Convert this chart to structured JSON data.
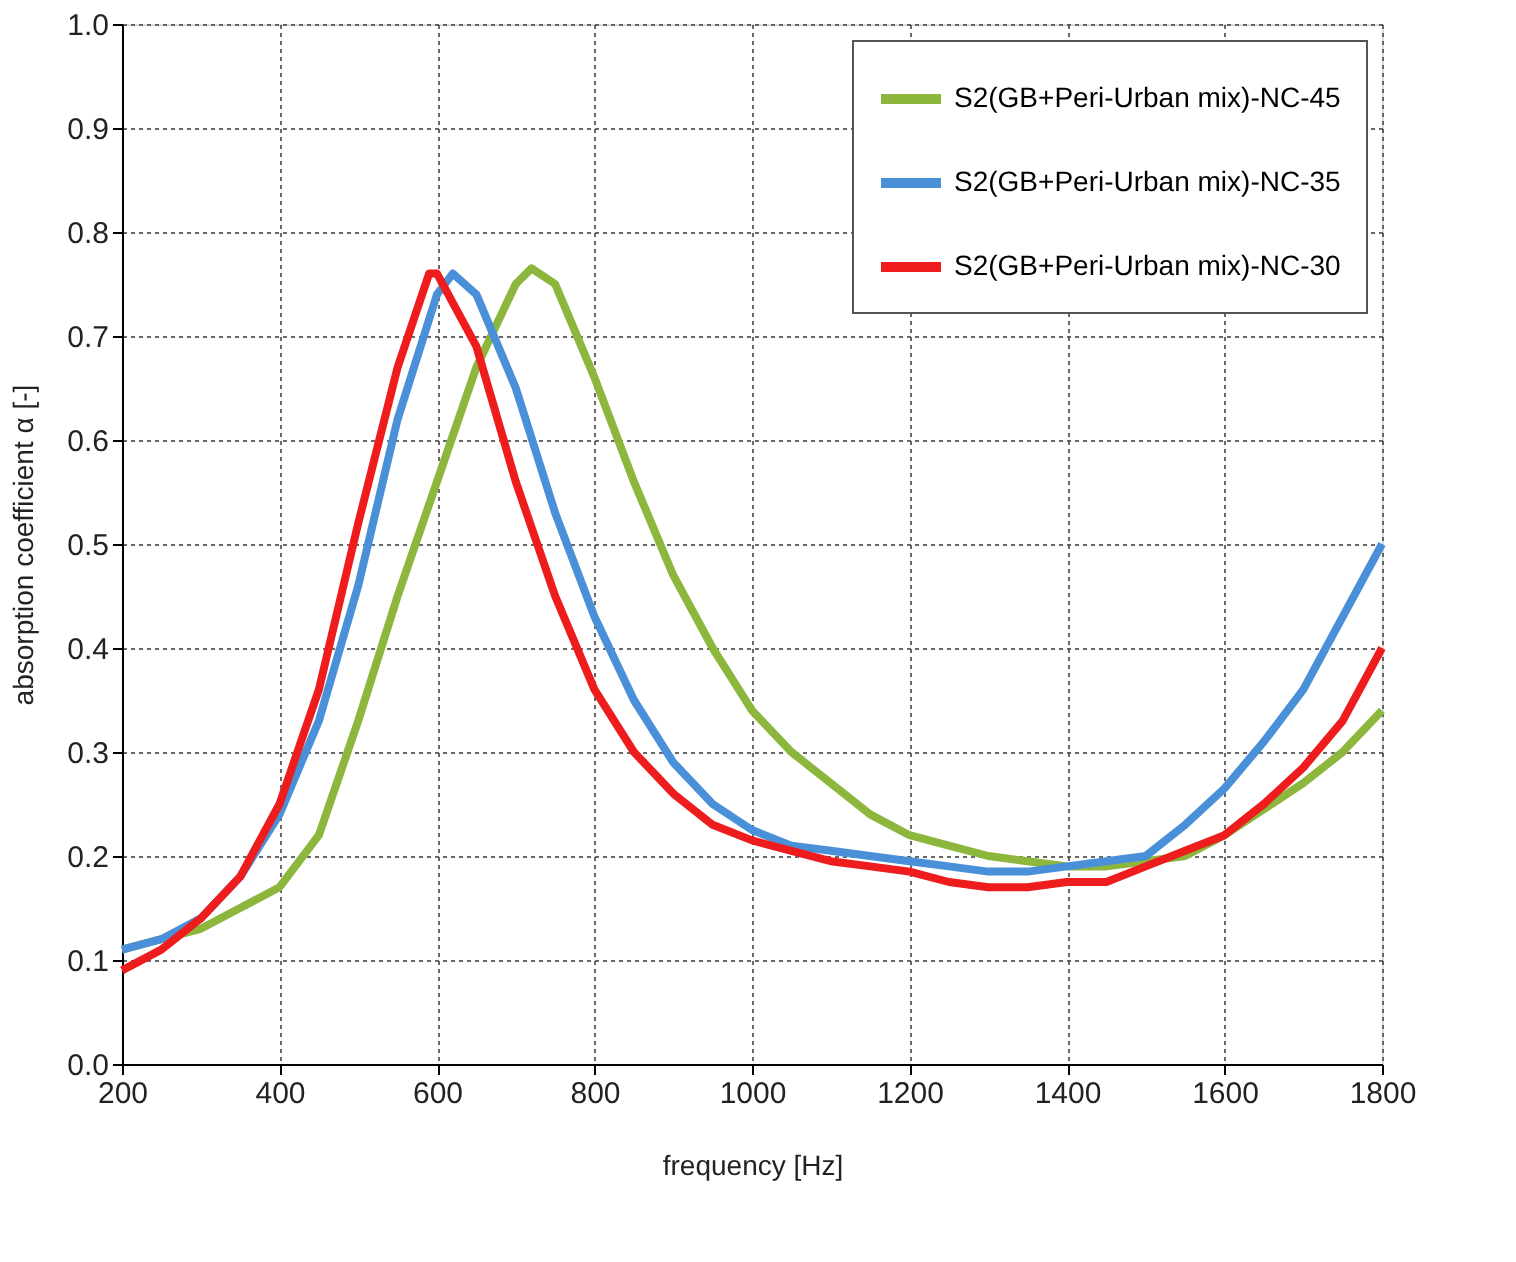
{
  "chart_data": {
    "type": "line",
    "xlabel": "frequency [Hz]",
    "ylabel": "absorption  coefficient α [-]",
    "xlim": [
      200,
      1800
    ],
    "xticks": [
      200,
      400,
      600,
      800,
      1000,
      1200,
      1400,
      1600,
      1800
    ],
    "ylim": [
      0,
      1
    ],
    "yticks": [
      {
        "value": 0,
        "label": "0.0"
      },
      0.1,
      0.2,
      0.3,
      0.4,
      0.5,
      0.6,
      0.7,
      0.8,
      0.9,
      {
        "value": 1,
        "label": "1.0"
      }
    ],
    "grid": true,
    "legend": "top right",
    "line_style": "solid",
    "marker": "none",
    "series": [
      {
        "name": "S2(GB+Peri-Urban mix)-NC-45",
        "color": "#8cb63c",
        "x": [
          200,
          250,
          300,
          350,
          400,
          450,
          500,
          550,
          600,
          650,
          700,
          720,
          750,
          800,
          850,
          900,
          950,
          1000,
          1050,
          1100,
          1150,
          1200,
          1250,
          1300,
          1350,
          1400,
          1450,
          1500,
          1550,
          1600,
          1650,
          1700,
          1750,
          1800
        ],
        "values": [
          0.11,
          0.12,
          0.13,
          0.15,
          0.17,
          0.22,
          0.33,
          0.45,
          0.56,
          0.67,
          0.75,
          0.765,
          0.75,
          0.66,
          0.56,
          0.47,
          0.4,
          0.34,
          0.3,
          0.27,
          0.24,
          0.22,
          0.21,
          0.2,
          0.195,
          0.19,
          0.19,
          0.195,
          0.2,
          0.22,
          0.245,
          0.27,
          0.3,
          0.34
        ]
      },
      {
        "name": "S2(GB+Peri-Urban mix)-NC-35",
        "color": "#4a90d9",
        "x": [
          200,
          250,
          300,
          350,
          400,
          450,
          500,
          550,
          600,
          620,
          650,
          700,
          750,
          800,
          850,
          900,
          950,
          1000,
          1050,
          1100,
          1150,
          1200,
          1250,
          1300,
          1350,
          1400,
          1450,
          1500,
          1550,
          1600,
          1650,
          1700,
          1750,
          1800
        ],
        "values": [
          0.11,
          0.12,
          0.14,
          0.18,
          0.24,
          0.33,
          0.46,
          0.62,
          0.74,
          0.76,
          0.74,
          0.65,
          0.53,
          0.43,
          0.35,
          0.29,
          0.25,
          0.225,
          0.21,
          0.205,
          0.2,
          0.195,
          0.19,
          0.185,
          0.185,
          0.19,
          0.195,
          0.2,
          0.23,
          0.265,
          0.31,
          0.36,
          0.43,
          0.5
        ]
      },
      {
        "name": "S2(GB+Peri-Urban mix)-NC-30",
        "color": "#ee1c1c",
        "x": [
          200,
          250,
          300,
          350,
          400,
          450,
          500,
          550,
          590,
          600,
          650,
          700,
          750,
          800,
          850,
          900,
          950,
          1000,
          1050,
          1100,
          1150,
          1200,
          1250,
          1300,
          1350,
          1400,
          1450,
          1500,
          1550,
          1600,
          1650,
          1700,
          1750,
          1800
        ],
        "values": [
          0.09,
          0.11,
          0.14,
          0.18,
          0.25,
          0.36,
          0.52,
          0.67,
          0.76,
          0.76,
          0.69,
          0.56,
          0.45,
          0.36,
          0.3,
          0.26,
          0.23,
          0.215,
          0.205,
          0.195,
          0.19,
          0.185,
          0.175,
          0.17,
          0.17,
          0.175,
          0.175,
          0.19,
          0.205,
          0.22,
          0.25,
          0.285,
          0.33,
          0.4
        ]
      }
    ]
  }
}
